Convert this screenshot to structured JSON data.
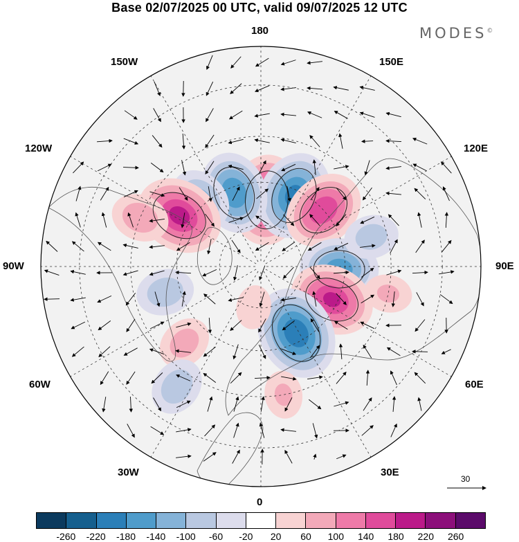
{
  "title": "Base 02/07/2025 00 UTC, valid 09/07/2025 12 UTC",
  "brand": {
    "name": "MODES",
    "mark": "©"
  },
  "longitude_labels": {
    "top": "180",
    "bottom": "0",
    "left": "90W",
    "right": "90E",
    "upper_left_1": "150W",
    "upper_left_2": "120W",
    "upper_right_1": "150E",
    "upper_right_2": "120E",
    "lower_left_1": "60W",
    "lower_left_2": "30W",
    "lower_right_1": "60E",
    "lower_right_2": "30E"
  },
  "reference_vector": {
    "value": "30"
  },
  "colorbar": {
    "ticks": [
      "-260",
      "-220",
      "-180",
      "-140",
      "-100",
      "-60",
      "-20",
      "20",
      "60",
      "100",
      "140",
      "180",
      "220",
      "260"
    ],
    "colors": [
      "#0b3a5e",
      "#155f8e",
      "#2b7fb8",
      "#4f9ccb",
      "#85b3d8",
      "#b9c8e1",
      "#dcdcec",
      "#ffffff",
      "#f8d3d3",
      "#f3a9b9",
      "#ee7aa8",
      "#e04b9b",
      "#bb1a89",
      "#8c0f7a",
      "#5b0a6a"
    ]
  },
  "map_data": {
    "projection": "north-polar-stereographic",
    "field_range": [
      -260,
      260
    ],
    "anomaly_centers": [
      {
        "lon": 175,
        "lat": 66,
        "value": 200
      },
      {
        "lon": 155,
        "lat": 62,
        "value": -190
      },
      {
        "lon": 132,
        "lat": 60,
        "value": 170
      },
      {
        "lon": -160,
        "lat": 62,
        "value": -170
      },
      {
        "lon": -138,
        "lat": 58,
        "value": -110
      },
      {
        "lon": -122,
        "lat": 56,
        "value": 190
      },
      {
        "lon": -112,
        "lat": 45,
        "value": 90
      },
      {
        "lon": 88,
        "lat": 62,
        "value": -160
      },
      {
        "lon": 65,
        "lat": 62,
        "value": 180
      },
      {
        "lon": 28,
        "lat": 63,
        "value": -210
      },
      {
        "lon": -45,
        "lat": 52,
        "value": 80
      },
      {
        "lon": -35,
        "lat": 40,
        "value": -90
      },
      {
        "lon": -75,
        "lat": 55,
        "value": -90
      },
      {
        "lon": 105,
        "lat": 50,
        "value": -80
      },
      {
        "lon": 78,
        "lat": 45,
        "value": 60
      },
      {
        "lon": 10,
        "lat": 45,
        "value": 60
      },
      {
        "lon": -10,
        "lat": 75,
        "value": 50
      }
    ]
  }
}
